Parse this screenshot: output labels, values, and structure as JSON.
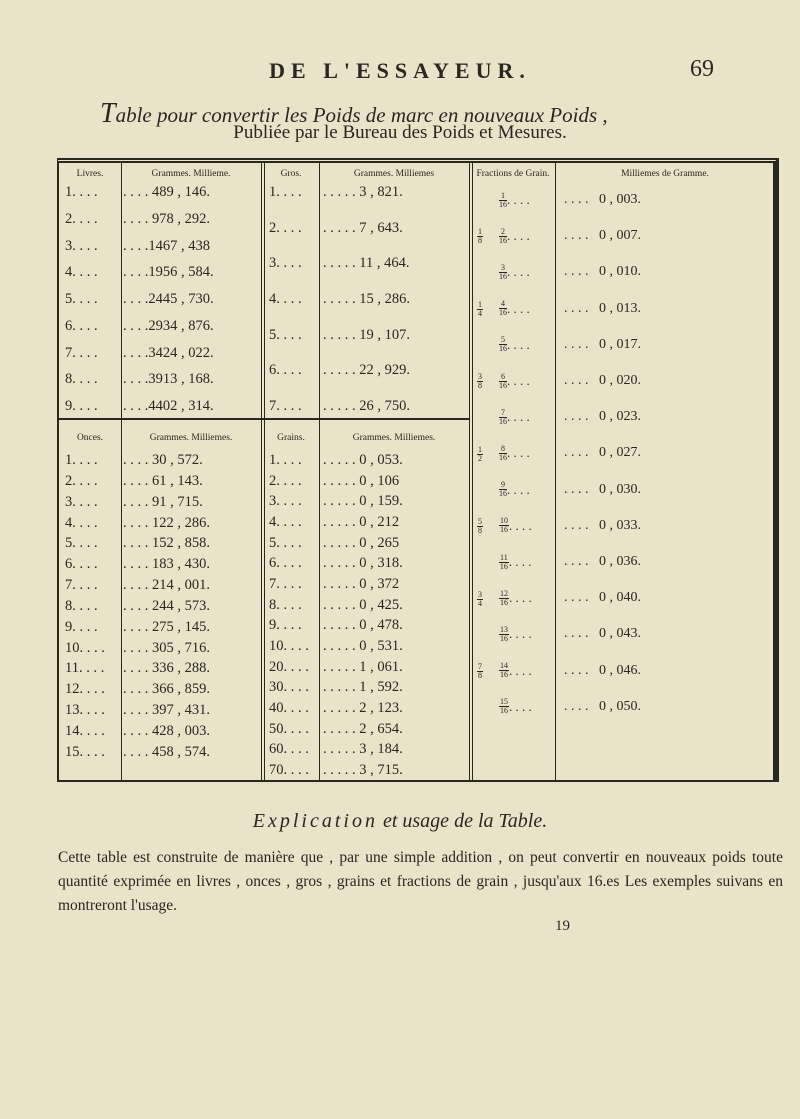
{
  "header": {
    "running_head": "DE L'ESSAYEUR.",
    "page_number": "69"
  },
  "title": {
    "initial": "T",
    "rest": "able pour convertir les Poids de marc en nouveaux Poids ,"
  },
  "subtitle": "Publiée par le Bureau des Poids et Mesures.",
  "table": {
    "livres": {
      "header": "Livres.",
      "sub_header": "Grammes. Millieme.",
      "rows": [
        [
          "1. . . .",
          ". . . . 489 , 146."
        ],
        [
          "2. . . .",
          ". . . . 978 , 292."
        ],
        [
          "3. . . .",
          ". . . .1467 , 438"
        ],
        [
          "4. . . .",
          ". . . .1956 , 584."
        ],
        [
          "5. . . .",
          ". . . .2445 , 730."
        ],
        [
          "6. . . .",
          ". . . .2934 , 876."
        ],
        [
          "7. . . .",
          ". . . .3424 , 022."
        ],
        [
          "8. . . .",
          ". . . .3913 , 168."
        ],
        [
          "9. . . .",
          ". . . .4402 , 314."
        ]
      ]
    },
    "gros": {
      "header": "Gros.",
      "sub_header": "Grammes. Milliemes",
      "rows": [
        [
          "1. . . .",
          ". . . . . 3 , 821."
        ],
        [
          "2. . . .",
          ". . . . . 7 , 643."
        ],
        [
          "3. . . .",
          ". . . . . 11 , 464."
        ],
        [
          "4. . . .",
          ". . . . . 15 , 286."
        ],
        [
          "5. . . .",
          ". . . . . 19 , 107."
        ],
        [
          "6. . . .",
          ". . . . . 22 , 929."
        ],
        [
          "7. . . .",
          ". . . . . 26 , 750."
        ]
      ]
    },
    "onces": {
      "header": "Onces.",
      "sub_header": "Grammes. Milliemes.",
      "rows": [
        [
          "1. . . .",
          ". . . . 30 , 572."
        ],
        [
          "2. . . .",
          ". . . . 61 , 143."
        ],
        [
          "3. . . .",
          ". . . . 91 , 715."
        ],
        [
          "4. . . .",
          ". . . . 122 , 286."
        ],
        [
          "5. . . .",
          ". . . . 152 , 858."
        ],
        [
          "6. . . .",
          ". . . . 183 , 430."
        ],
        [
          "7. . . .",
          ". . . . 214 , 001."
        ],
        [
          "8. . . .",
          ". . . . 244 , 573."
        ],
        [
          "9. . . .",
          ". . . . 275 , 145."
        ],
        [
          "10. . . .",
          ". . . . 305 , 716."
        ],
        [
          "11. . . .",
          ". . . . 336 , 288."
        ],
        [
          "12. . . .",
          ". . . . 366 , 859."
        ],
        [
          "13. . . .",
          ". . . . 397 , 431."
        ],
        [
          "14. . . .",
          ". . . . 428 , 003."
        ],
        [
          "15. . . .",
          ". . . . 458 , 574."
        ]
      ]
    },
    "grains": {
      "header": "Grains.",
      "sub_header": "Grammes. Milliemes.",
      "rows": [
        [
          "1. . . .",
          ". . . . . 0 , 053."
        ],
        [
          "2. . . .",
          ". . . . . 0 , 106"
        ],
        [
          "3. . . .",
          ". . . . . 0 , 159."
        ],
        [
          "4. . . .",
          ". . . . . 0 , 212"
        ],
        [
          "5. . . .",
          ". . . . . 0 , 265"
        ],
        [
          "6. . . .",
          ". . . . . 0 , 318."
        ],
        [
          "7. . . .",
          ". . . . . 0 , 372"
        ],
        [
          "8. . . .",
          ". . . . . 0 , 425."
        ],
        [
          "9. . . .",
          ". . . . . 0 , 478."
        ],
        [
          "10. . . .",
          ". . . . . 0 , 531."
        ],
        [
          "20. . . .",
          ". . . . . 1 , 061."
        ],
        [
          "30. . . .",
          ". . . . . 1 , 592."
        ],
        [
          "40. . . .",
          ". . . . . 2 , 123."
        ],
        [
          "50. . . .",
          ". . . . . 2 , 654."
        ],
        [
          "60. . . .",
          ". . . . . 3 , 184."
        ],
        [
          "70. . . .",
          ". . . . . 3 , 715."
        ]
      ]
    },
    "fractions": {
      "header": "Fractions de Grain.",
      "sub_header": "Milliemes de Gramme.",
      "rows": [
        {
          "s": [
            "",
            ""
          ],
          "f": [
            "1",
            "16"
          ],
          "v": ". . . .   0 , 003."
        },
        {
          "s": [
            "1",
            "8"
          ],
          "f": [
            "2",
            "16"
          ],
          "v": ". . . .   0 , 007."
        },
        {
          "s": [
            "",
            ""
          ],
          "f": [
            "3",
            "16"
          ],
          "v": ". . . .   0 , 010."
        },
        {
          "s": [
            "1",
            "4"
          ],
          "f": [
            "4",
            "16"
          ],
          "v": ". . . .   0 , 013."
        },
        {
          "s": [
            "",
            ""
          ],
          "f": [
            "5",
            "16"
          ],
          "v": ". . . .   0 , 017."
        },
        {
          "s": [
            "3",
            "8"
          ],
          "f": [
            "6",
            "16"
          ],
          "v": ". . . .   0 , 020."
        },
        {
          "s": [
            "",
            ""
          ],
          "f": [
            "7",
            "16"
          ],
          "v": ". . . .   0 , 023."
        },
        {
          "s": [
            "1",
            "2"
          ],
          "f": [
            "8",
            "16"
          ],
          "v": ". . . .   0 , 027."
        },
        {
          "s": [
            "",
            ""
          ],
          "f": [
            "9",
            "16"
          ],
          "v": ". . . .   0 , 030."
        },
        {
          "s": [
            "5",
            "8"
          ],
          "f": [
            "10",
            "16"
          ],
          "v": ". . . .   0 , 033."
        },
        {
          "s": [
            "",
            ""
          ],
          "f": [
            "11",
            "16"
          ],
          "v": ". . . .   0 , 036."
        },
        {
          "s": [
            "3",
            "4"
          ],
          "f": [
            "12",
            "16"
          ],
          "v": ". . . .   0 , 040."
        },
        {
          "s": [
            "",
            ""
          ],
          "f": [
            "13",
            "16"
          ],
          "v": ". . . .   0 , 043."
        },
        {
          "s": [
            "7",
            "8"
          ],
          "f": [
            "14",
            "16"
          ],
          "v": ". . . .   0 , 046."
        },
        {
          "s": [
            "",
            ""
          ],
          "f": [
            "15",
            "16"
          ],
          "v": ". . . .   0 , 050."
        }
      ]
    }
  },
  "explication": {
    "title_sc": "Explication",
    "title_rest": "et usage de la Table.",
    "paragraph": "Cette table est construite de manière que , par une simple addition , on peut convertir en nouveaux poids toute quantité exprimée en livres , onces , gros , grains et fractions de grain , jusqu'aux 16.es Les exemples suivans en montreront l'usage.",
    "signature": "19"
  }
}
